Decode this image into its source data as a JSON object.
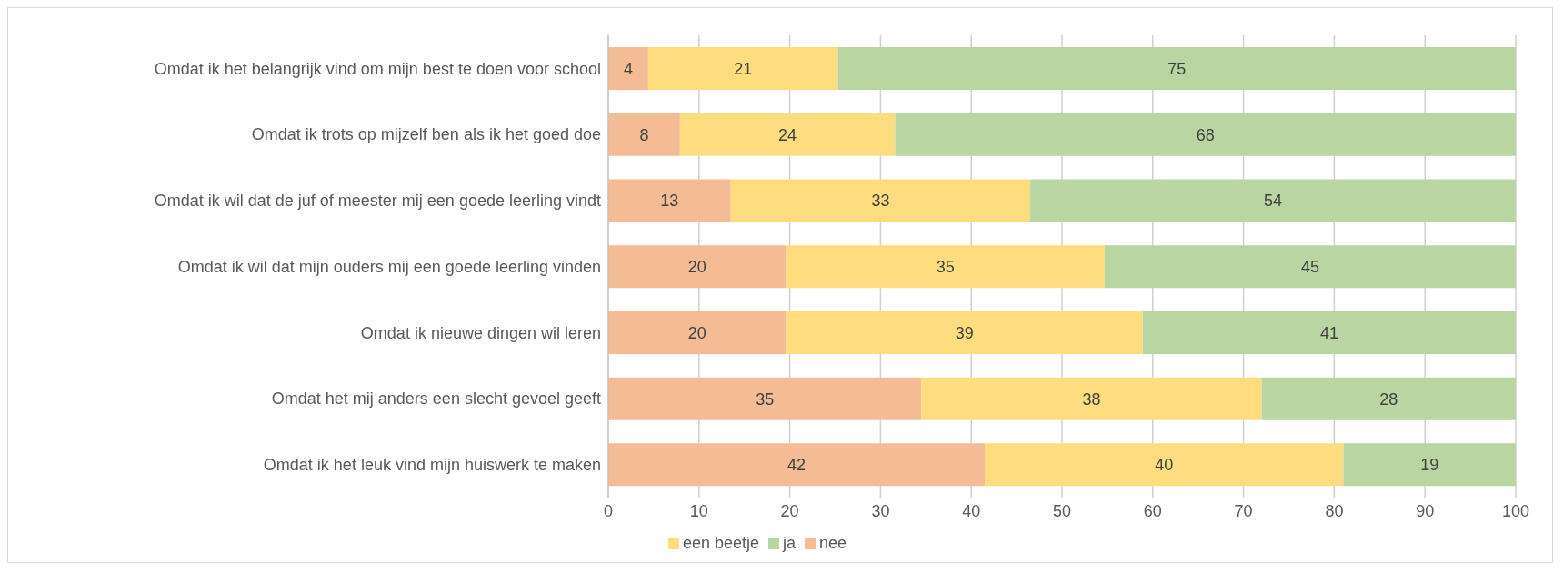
{
  "chart_data": {
    "type": "bar",
    "orientation": "horizontal",
    "stacked": true,
    "categories": [
      "Omdat ik het belangrijk vind om mijn best te doen voor school",
      "Omdat ik trots op mijzelf ben als ik het goed doe",
      "Omdat ik wil dat de juf of meester mij een goede leerling vindt",
      "Omdat ik wil dat mijn ouders mij een goede leerling vinden",
      "Omdat ik nieuwe dingen wil leren",
      "Omdat het mij anders een slecht gevoel geeft",
      "Omdat ik het leuk vind mijn huiswerk te maken"
    ],
    "series": [
      {
        "name": "nee",
        "color": "#f4bc94",
        "values": [
          4.4,
          7.9,
          13.5,
          19.6,
          19.6,
          34.5,
          41.5
        ],
        "value_labels": [
          "4",
          "8",
          "13",
          "20",
          "20",
          "35",
          "42"
        ]
      },
      {
        "name": "een beetje",
        "color": "#ffdd7f",
        "values": [
          20.9,
          23.7,
          33,
          35.1,
          39.3,
          37.5,
          39.5
        ],
        "value_labels": [
          "21",
          "24",
          "33",
          "35",
          "39",
          "38",
          "40"
        ]
      },
      {
        "name": "ja",
        "color": "#b8d5a2",
        "values": [
          74.7,
          68.4,
          53.5,
          45.3,
          41.1,
          28,
          19
        ],
        "value_labels": [
          "75",
          "68",
          "54",
          "45",
          "41",
          "28",
          "19"
        ]
      }
    ],
    "xlim": [
      0,
      100
    ],
    "xticks": [
      0,
      10,
      20,
      30,
      40,
      50,
      60,
      70,
      80,
      90,
      100
    ],
    "grid": "x",
    "legend": "bottom"
  }
}
